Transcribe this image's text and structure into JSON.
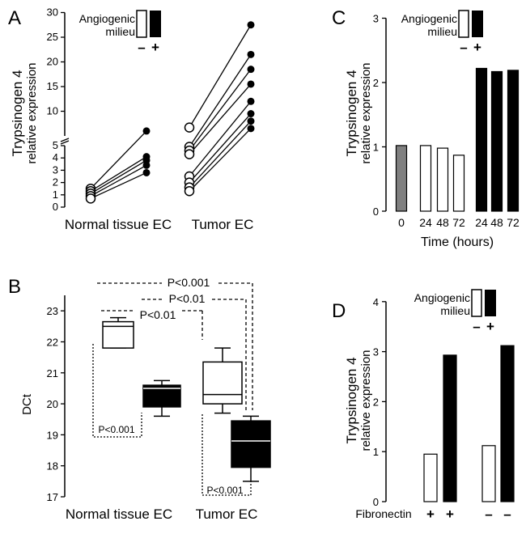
{
  "panels": {
    "A": "A",
    "B": "B",
    "C": "C",
    "D": "D"
  },
  "legend": {
    "line1": "Angiogenic",
    "line2": "milieu",
    "minus": "–",
    "plus": "+"
  },
  "chart_data": [
    {
      "panel": "A",
      "type": "scatter",
      "ylabel_line1": "Trypsinogen 4",
      "ylabel_line2": "relative expression",
      "categories": [
        "Normal tissue EC",
        "Tumor EC"
      ],
      "y_axis_break": true,
      "ylim_lower": [
        0,
        5
      ],
      "ylim_upper": [
        5,
        30
      ],
      "lower_ticks": [
        "0",
        "1",
        "2",
        "3",
        "4",
        "5"
      ],
      "upper_ticks": [
        "10",
        "15",
        "20",
        "25",
        "30"
      ],
      "series": [
        {
          "name": "–",
          "values_normal": [
            1.5,
            1.3,
            1.1,
            0.9,
            0.7
          ],
          "values_tumor": [
            6.7,
            4.9,
            4.6,
            4.3,
            2.5,
            2.0,
            1.6,
            1.3
          ]
        },
        {
          "name": "+",
          "values_normal": [
            6.0,
            4.1,
            3.8,
            3.4,
            2.8
          ],
          "values_tumor": [
            27.5,
            21.5,
            18.5,
            15.5,
            12.0,
            9.5,
            8.0,
            6.5
          ]
        }
      ],
      "pairs_normal": [
        [
          1.5,
          6.0
        ],
        [
          1.3,
          4.1
        ],
        [
          1.1,
          3.8
        ],
        [
          0.9,
          3.4
        ],
        [
          0.7,
          2.8
        ]
      ],
      "pairs_tumor": [
        [
          6.7,
          27.5
        ],
        [
          4.9,
          21.5
        ],
        [
          4.6,
          18.5
        ],
        [
          4.3,
          15.5
        ],
        [
          2.5,
          12.0
        ],
        [
          2.0,
          9.5
        ],
        [
          1.6,
          8.0
        ],
        [
          1.3,
          6.5
        ]
      ]
    },
    {
      "panel": "B",
      "type": "box",
      "ylabel": "DCt",
      "ylim": [
        17,
        23
      ],
      "ticks": [
        "17",
        "18",
        "19",
        "20",
        "21",
        "22",
        "23"
      ],
      "categories": [
        "Normal tissue EC",
        "Tumor EC"
      ],
      "boxes": [
        {
          "group": "Normal tissue EC",
          "milieu": "–",
          "whisker_low": 21.8,
          "q1": 21.8,
          "median": 22.5,
          "q3": 22.65,
          "whisker_high": 22.78
        },
        {
          "group": "Normal tissue EC",
          "milieu": "+",
          "whisker_low": 19.6,
          "q1": 19.9,
          "median": 20.5,
          "q3": 20.6,
          "whisker_high": 20.75
        },
        {
          "group": "Tumor EC",
          "milieu": "–",
          "whisker_low": 19.7,
          "q1": 20.0,
          "median": 20.3,
          "q3": 21.35,
          "whisker_high": 21.8
        },
        {
          "group": "Tumor EC",
          "milieu": "+",
          "whisker_low": 17.5,
          "q1": 17.95,
          "median": 18.8,
          "q3": 19.45,
          "whisker_high": 19.6
        }
      ],
      "annotations": [
        "P<0.001",
        "P<0.01",
        "P<0.01",
        "P<0.001",
        "P<0.001"
      ]
    },
    {
      "panel": "C",
      "type": "bar",
      "ylabel_line1": "Trypsinogen 4",
      "ylabel_line2": "relative expression",
      "xlabel": "Time (hours)",
      "ylim": [
        0,
        3
      ],
      "ticks": [
        "0",
        "1",
        "2",
        "3"
      ],
      "categories": [
        "0",
        "24",
        "48",
        "72",
        "24",
        "48",
        "72"
      ],
      "values": [
        1.02,
        1.02,
        0.98,
        0.87,
        2.22,
        2.17,
        2.19
      ],
      "fills": [
        "gray",
        "white",
        "white",
        "white",
        "black",
        "black",
        "black"
      ]
    },
    {
      "panel": "D",
      "type": "bar",
      "ylabel_line1": "Trypsinogen 4",
      "ylabel_line2": "relative expression",
      "xlabel": "Fibronectin",
      "ylim": [
        0,
        4
      ],
      "ticks": [
        "0",
        "1",
        "2",
        "3",
        "4"
      ],
      "fibronectin_signs": [
        "+",
        "+",
        "–",
        "–"
      ],
      "values": [
        0.95,
        2.93,
        1.12,
        3.12
      ],
      "fills": [
        "white",
        "black",
        "white",
        "black"
      ]
    }
  ]
}
